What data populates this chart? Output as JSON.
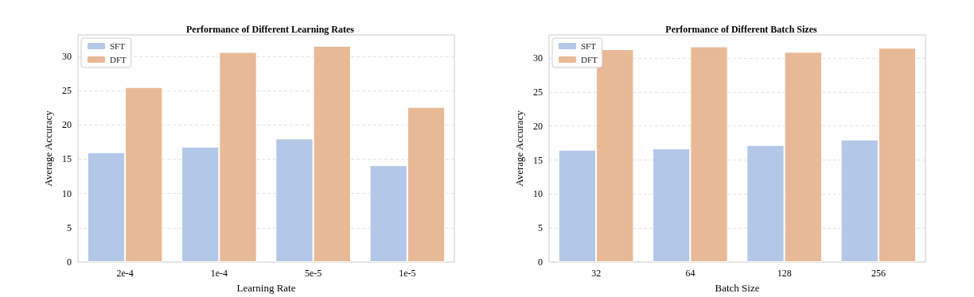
{
  "chart_data": [
    {
      "type": "bar",
      "title": "Performance of Different Learning Rates",
      "xlabel": "Learning Rate",
      "ylabel": "Average Accuracy",
      "categories": [
        "2e-4",
        "1e-4",
        "5e-5",
        "1e-5"
      ],
      "series": [
        {
          "name": "SFT",
          "color": "#b3c8e7",
          "values": [
            16.0,
            16.8,
            18.0,
            14.1
          ]
        },
        {
          "name": "DFT",
          "color": "#e8b996",
          "values": [
            25.5,
            30.6,
            31.5,
            22.6
          ]
        }
      ],
      "ylim": [
        0,
        33.1
      ],
      "yticks": [
        0,
        5,
        10,
        15,
        20,
        25,
        30
      ],
      "grid": "y",
      "legend": "top left"
    },
    {
      "type": "bar",
      "title": "Performance of Different Batch Sizes",
      "xlabel": "Batch Size",
      "ylabel": "Average Accuracy",
      "categories": [
        "32",
        "64",
        "128",
        "256"
      ],
      "series": [
        {
          "name": "SFT",
          "color": "#b3c8e7",
          "values": [
            16.5,
            16.7,
            17.2,
            18.0
          ]
        },
        {
          "name": "DFT",
          "color": "#e8b996",
          "values": [
            31.3,
            31.7,
            30.9,
            31.5
          ]
        }
      ],
      "ylim": [
        0,
        33.4
      ],
      "yticks": [
        0,
        5,
        10,
        15,
        20,
        25,
        30
      ],
      "grid": "y",
      "legend": "top left"
    }
  ]
}
